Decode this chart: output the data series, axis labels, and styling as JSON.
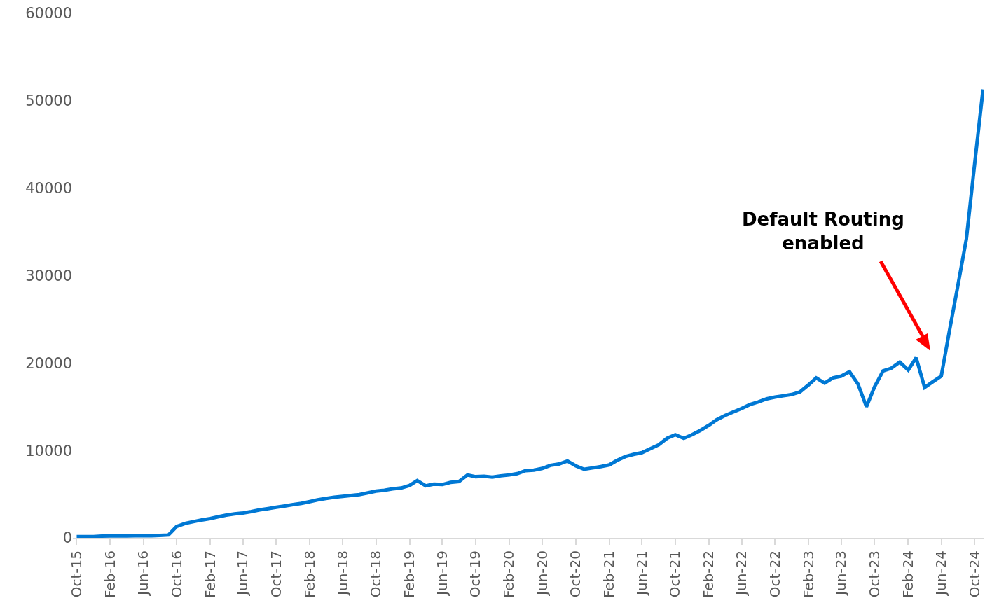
{
  "chart_data": {
    "type": "line",
    "x": [
      "2015-10",
      "2015-11",
      "2015-12",
      "2016-01",
      "2016-02",
      "2016-03",
      "2016-04",
      "2016-05",
      "2016-06",
      "2016-07",
      "2016-08",
      "2016-09",
      "2016-10",
      "2016-11",
      "2016-12",
      "2017-01",
      "2017-02",
      "2017-03",
      "2017-04",
      "2017-05",
      "2017-06",
      "2017-07",
      "2017-08",
      "2017-09",
      "2017-10",
      "2017-11",
      "2017-12",
      "2018-01",
      "2018-02",
      "2018-03",
      "2018-04",
      "2018-05",
      "2018-06",
      "2018-07",
      "2018-08",
      "2018-09",
      "2018-10",
      "2018-11",
      "2018-12",
      "2019-01",
      "2019-02",
      "2019-03",
      "2019-04",
      "2019-05",
      "2019-06",
      "2019-07",
      "2019-08",
      "2019-09",
      "2019-10",
      "2019-11",
      "2019-12",
      "2020-01",
      "2020-02",
      "2020-03",
      "2020-04",
      "2020-05",
      "2020-06",
      "2020-07",
      "2020-08",
      "2020-09",
      "2020-10",
      "2020-11",
      "2020-12",
      "2021-01",
      "2021-02",
      "2021-03",
      "2021-04",
      "2021-05",
      "2021-06",
      "2021-07",
      "2021-08",
      "2021-09",
      "2021-10",
      "2021-11",
      "2021-12",
      "2022-01",
      "2022-02",
      "2022-03",
      "2022-04",
      "2022-05",
      "2022-06",
      "2022-07",
      "2022-08",
      "2022-09",
      "2022-10",
      "2022-11",
      "2022-12",
      "2023-01",
      "2023-02",
      "2023-03",
      "2023-04",
      "2023-05",
      "2023-06",
      "2023-07",
      "2023-08",
      "2023-09",
      "2023-10",
      "2023-11",
      "2023-12",
      "2024-01",
      "2024-02",
      "2024-03",
      "2024-04",
      "2024-05",
      "2024-06",
      "2024-07",
      "2024-08",
      "2024-09",
      "2024-10",
      "2024-11"
    ],
    "series": [
      {
        "color": "#0078d4",
        "values": [
          150,
          150,
          150,
          200,
          220,
          220,
          220,
          250,
          250,
          250,
          280,
          330,
          1300,
          1650,
          1850,
          2050,
          2200,
          2400,
          2600,
          2750,
          2850,
          3000,
          3200,
          3350,
          3500,
          3650,
          3800,
          3950,
          4150,
          4350,
          4500,
          4650,
          4750,
          4850,
          4950,
          5150,
          5350,
          5450,
          5600,
          5700,
          6000,
          6550,
          5950,
          6150,
          6100,
          6350,
          6450,
          7200,
          7000,
          7050,
          6950,
          7100,
          7200,
          7350,
          7700,
          7750,
          7950,
          8300,
          8450,
          8800,
          8250,
          7850,
          8000,
          8150,
          8350,
          8850,
          9300,
          9550,
          9750,
          10200,
          10640,
          11400,
          11800,
          11400,
          11800,
          12300,
          12880,
          13500,
          14000,
          14400,
          14800,
          15250,
          15550,
          15900,
          16100,
          16250,
          16400,
          16700,
          17500,
          18300,
          17700,
          18300,
          18500,
          19000,
          17600,
          15000,
          17300,
          19100,
          19400,
          20100,
          19200,
          20600,
          17200,
          17850,
          18500,
          23700,
          28900,
          34200,
          42700,
          51300
        ]
      }
    ],
    "xlim": [
      "2015-09-17",
      "2024-11-03"
    ],
    "xticks": [
      {
        "value": "2015-10",
        "label": "Oct-15"
      },
      {
        "value": "2016-02",
        "label": "Feb-16"
      },
      {
        "value": "2016-06",
        "label": "Jun-16"
      },
      {
        "value": "2016-10",
        "label": "Oct-16"
      },
      {
        "value": "2017-02",
        "label": "Feb-17"
      },
      {
        "value": "2017-06",
        "label": "Jun-17"
      },
      {
        "value": "2017-10",
        "label": "Oct-17"
      },
      {
        "value": "2018-02",
        "label": "Feb-18"
      },
      {
        "value": "2018-06",
        "label": "Jun-18"
      },
      {
        "value": "2018-10",
        "label": "Oct-18"
      },
      {
        "value": "2019-02",
        "label": "Feb-19"
      },
      {
        "value": "2019-06",
        "label": "Jun-19"
      },
      {
        "value": "2019-10",
        "label": "Oct-19"
      },
      {
        "value": "2020-02",
        "label": "Feb-20"
      },
      {
        "value": "2020-06",
        "label": "Jun-20"
      },
      {
        "value": "2020-10",
        "label": "Oct-20"
      },
      {
        "value": "2021-02",
        "label": "Feb-21"
      },
      {
        "value": "2021-06",
        "label": "Jun-21"
      },
      {
        "value": "2021-10",
        "label": "Oct-21"
      },
      {
        "value": "2022-02",
        "label": "Feb-22"
      },
      {
        "value": "2022-06",
        "label": "Jun-22"
      },
      {
        "value": "2022-10",
        "label": "Oct-22"
      },
      {
        "value": "2023-02",
        "label": "Feb-23"
      },
      {
        "value": "2023-06",
        "label": "Jun-23"
      },
      {
        "value": "2023-10",
        "label": "Oct-23"
      },
      {
        "value": "2024-02",
        "label": "Feb-24"
      },
      {
        "value": "2024-06",
        "label": "Jun-24"
      },
      {
        "value": "2024-10",
        "label": "Oct-24"
      }
    ],
    "ylim": [
      0,
      60000
    ],
    "yticks": [
      0,
      10000,
      20000,
      30000,
      40000,
      50000,
      60000
    ],
    "grid": false,
    "marker": "none",
    "line_style": "solid",
    "annotations": [
      "Default Routing\nenabled"
    ]
  }
}
